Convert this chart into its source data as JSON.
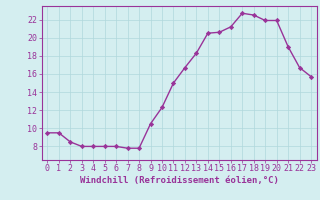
{
  "x": [
    0,
    1,
    2,
    3,
    4,
    5,
    6,
    7,
    8,
    9,
    10,
    11,
    12,
    13,
    14,
    15,
    16,
    17,
    18,
    19,
    20,
    21,
    22,
    23
  ],
  "y": [
    9.5,
    9.5,
    8.5,
    8.0,
    8.0,
    8.0,
    8.0,
    7.8,
    7.8,
    10.5,
    12.3,
    15.0,
    16.7,
    18.3,
    20.5,
    20.6,
    21.2,
    22.7,
    22.5,
    21.9,
    21.9,
    19.0,
    16.7,
    15.7
  ],
  "line_color": "#993399",
  "marker": "D",
  "marker_size": 2.2,
  "linewidth": 1.0,
  "xlabel": "Windchill (Refroidissement éolien,°C)",
  "xlim": [
    -0.5,
    23.5
  ],
  "ylim": [
    6.5,
    23.5
  ],
  "yticks": [
    8,
    10,
    12,
    14,
    16,
    18,
    20,
    22
  ],
  "xticks": [
    0,
    1,
    2,
    3,
    4,
    5,
    6,
    7,
    8,
    9,
    10,
    11,
    12,
    13,
    14,
    15,
    16,
    17,
    18,
    19,
    20,
    21,
    22,
    23
  ],
  "background_color": "#d4eef0",
  "grid_color": "#b0d8dc",
  "tick_color": "#993399",
  "label_color": "#993399",
  "xlabel_fontsize": 6.5,
  "tick_fontsize": 6.0,
  "spine_color": "#993399"
}
